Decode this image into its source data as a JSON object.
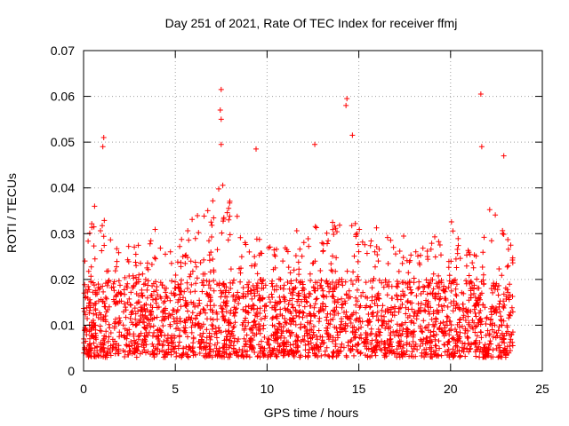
{
  "chart_data": {
    "type": "scatter",
    "title": "Day 251 of 2021, Rate Of TEC Index for receiver ffmj",
    "xlabel": "GPS time / hours",
    "ylabel": "ROTI / TECUs",
    "xlim": [
      0,
      25
    ],
    "ylim": [
      0,
      0.07
    ],
    "xticks": [
      0,
      5,
      10,
      15,
      20,
      25
    ],
    "xtick_labels": [
      "0",
      "5",
      "10",
      "15",
      "20",
      "25"
    ],
    "yticks": [
      0,
      0.01,
      0.02,
      0.03,
      0.04,
      0.05,
      0.06,
      0.07
    ],
    "ytick_labels": [
      "0",
      "0.01",
      "0.02",
      "0.03",
      "0.04",
      "0.05",
      "0.06",
      "0.07"
    ],
    "grid": true,
    "marker": "+",
    "series": [
      {
        "name": "ROTI",
        "color": "#ff0000",
        "x_range": [
          0,
          23.4
        ],
        "notable_points": [
          {
            "x": 0.6,
            "y": 0.036
          },
          {
            "x": 1.05,
            "y": 0.049
          },
          {
            "x": 1.1,
            "y": 0.051
          },
          {
            "x": 7.5,
            "y": 0.0615
          },
          {
            "x": 7.45,
            "y": 0.057
          },
          {
            "x": 7.5,
            "y": 0.055
          },
          {
            "x": 7.5,
            "y": 0.0495
          },
          {
            "x": 9.4,
            "y": 0.0485
          },
          {
            "x": 12.6,
            "y": 0.0495
          },
          {
            "x": 14.3,
            "y": 0.058
          },
          {
            "x": 14.35,
            "y": 0.0595
          },
          {
            "x": 14.65,
            "y": 0.0515
          },
          {
            "x": 21.65,
            "y": 0.0605
          },
          {
            "x": 21.7,
            "y": 0.049
          },
          {
            "x": 22.9,
            "y": 0.047
          }
        ],
        "envelope": [
          {
            "x": 0,
            "y": 0.027
          },
          {
            "x": 0.5,
            "y": 0.033
          },
          {
            "x": 1.0,
            "y": 0.038
          },
          {
            "x": 1.5,
            "y": 0.028
          },
          {
            "x": 2.0,
            "y": 0.029
          },
          {
            "x": 2.5,
            "y": 0.03
          },
          {
            "x": 3.0,
            "y": 0.028
          },
          {
            "x": 3.5,
            "y": 0.034
          },
          {
            "x": 4.0,
            "y": 0.032
          },
          {
            "x": 4.5,
            "y": 0.029
          },
          {
            "x": 5.0,
            "y": 0.028
          },
          {
            "x": 5.5,
            "y": 0.03
          },
          {
            "x": 6.0,
            "y": 0.034
          },
          {
            "x": 6.5,
            "y": 0.036
          },
          {
            "x": 7.0,
            "y": 0.038
          },
          {
            "x": 7.5,
            "y": 0.042
          },
          {
            "x": 8.0,
            "y": 0.038
          },
          {
            "x": 8.5,
            "y": 0.033
          },
          {
            "x": 9.0,
            "y": 0.03
          },
          {
            "x": 9.5,
            "y": 0.031
          },
          {
            "x": 10.0,
            "y": 0.028
          },
          {
            "x": 10.5,
            "y": 0.03
          },
          {
            "x": 11.0,
            "y": 0.032
          },
          {
            "x": 11.5,
            "y": 0.031
          },
          {
            "x": 12.0,
            "y": 0.03
          },
          {
            "x": 12.5,
            "y": 0.034
          },
          {
            "x": 13.0,
            "y": 0.032
          },
          {
            "x": 13.5,
            "y": 0.034
          },
          {
            "x": 14.0,
            "y": 0.036
          },
          {
            "x": 14.5,
            "y": 0.035
          },
          {
            "x": 15.0,
            "y": 0.032
          },
          {
            "x": 15.5,
            "y": 0.03
          },
          {
            "x": 16.0,
            "y": 0.033
          },
          {
            "x": 16.5,
            "y": 0.031
          },
          {
            "x": 17.0,
            "y": 0.029
          },
          {
            "x": 17.5,
            "y": 0.03
          },
          {
            "x": 18.0,
            "y": 0.031
          },
          {
            "x": 18.5,
            "y": 0.029
          },
          {
            "x": 19.0,
            "y": 0.03
          },
          {
            "x": 19.5,
            "y": 0.031
          },
          {
            "x": 20.0,
            "y": 0.033
          },
          {
            "x": 20.5,
            "y": 0.032
          },
          {
            "x": 21.0,
            "y": 0.03
          },
          {
            "x": 21.5,
            "y": 0.034
          },
          {
            "x": 22.0,
            "y": 0.036
          },
          {
            "x": 22.5,
            "y": 0.034
          },
          {
            "x": 23.0,
            "y": 0.03
          },
          {
            "x": 23.4,
            "y": 0.028
          }
        ],
        "typical_range": [
          0.003,
          0.02
        ]
      }
    ]
  }
}
